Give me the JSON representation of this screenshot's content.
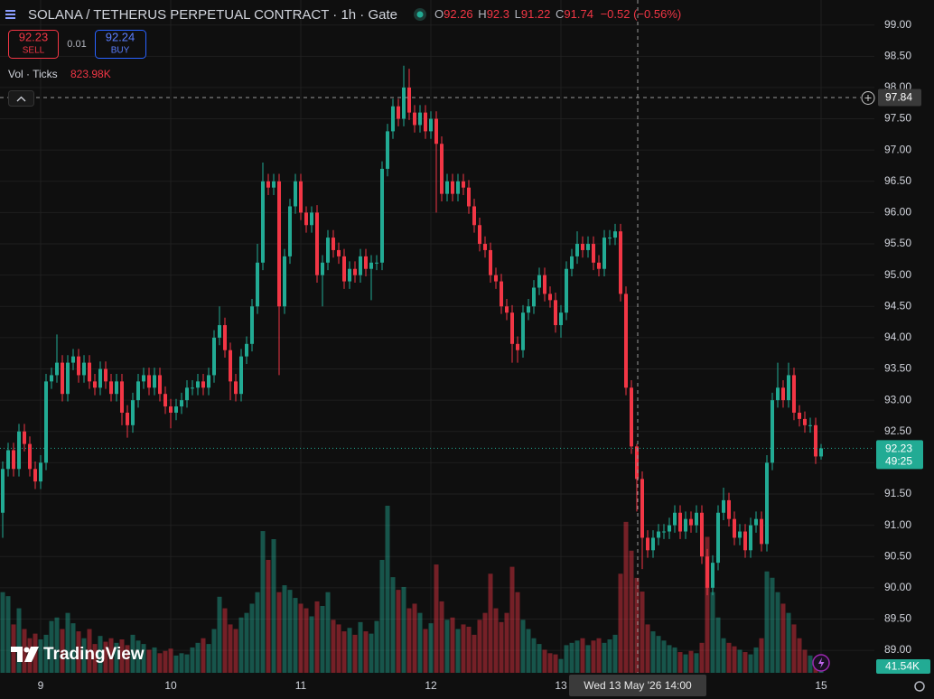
{
  "chart_data": {
    "type": "candlestick",
    "title": "SOLANA / TETHERUS PERPETUAL CONTRACT · 1h · Gate",
    "change": "−0.52 (−0.56%)",
    "up_color": "#22ab94",
    "down_color": "#f23645",
    "grid": true,
    "ylim": [
      88.64,
      99.4
    ],
    "yticks": [
      {
        "value": 89,
        "label": "89.00"
      },
      {
        "value": 89.5,
        "label": "89.50"
      },
      {
        "value": 90,
        "label": "90.00"
      },
      {
        "value": 90.5,
        "label": "90.50"
      },
      {
        "value": 91,
        "label": "91.00"
      },
      {
        "value": 91.5,
        "label": "91.50"
      },
      {
        "value": 92,
        "label": "92.00"
      },
      {
        "value": 92.5,
        "label": "92.50"
      },
      {
        "value": 93,
        "label": "93.00"
      },
      {
        "value": 93.5,
        "label": "93.50"
      },
      {
        "value": 94,
        "label": "94.00"
      },
      {
        "value": 94.5,
        "label": "94.50"
      },
      {
        "value": 95,
        "label": "95.00"
      },
      {
        "value": 95.5,
        "label": "95.50"
      },
      {
        "value": 96,
        "label": "96.00"
      },
      {
        "value": 96.5,
        "label": "96.50"
      },
      {
        "value": 97,
        "label": "97.00"
      },
      {
        "value": 97.5,
        "label": "97.50"
      },
      {
        "value": 98,
        "label": "98.00"
      },
      {
        "value": 98.5,
        "label": "98.50"
      },
      {
        "value": 99,
        "label": "99.00"
      }
    ],
    "categories": [
      null,
      null,
      null,
      null,
      null,
      null,
      null,
      "9",
      null,
      null,
      null,
      null,
      null,
      null,
      null,
      null,
      null,
      null,
      null,
      null,
      null,
      null,
      null,
      null,
      null,
      null,
      null,
      null,
      null,
      null,
      null,
      "10",
      null,
      null,
      null,
      null,
      null,
      null,
      null,
      null,
      null,
      null,
      null,
      null,
      null,
      null,
      null,
      null,
      null,
      null,
      null,
      null,
      null,
      null,
      null,
      "11",
      null,
      null,
      null,
      null,
      null,
      null,
      null,
      null,
      null,
      null,
      null,
      null,
      null,
      null,
      null,
      null,
      null,
      null,
      null,
      null,
      null,
      null,
      null,
      "12",
      null,
      null,
      null,
      null,
      null,
      null,
      null,
      null,
      null,
      null,
      null,
      null,
      null,
      null,
      null,
      null,
      null,
      null,
      null,
      null,
      null,
      null,
      null,
      "13",
      null,
      null,
      null,
      null,
      null,
      null,
      null,
      null,
      null,
      null,
      null,
      null,
      null,
      null,
      null,
      null,
      null,
      null,
      null,
      null,
      null,
      null,
      null,
      null,
      null,
      null,
      null,
      null,
      null,
      null,
      null,
      null,
      null,
      null,
      null,
      null,
      null,
      null,
      null,
      null,
      null,
      null,
      null,
      null,
      null,
      null,
      null,
      "15"
    ],
    "open": [
      91.2,
      91.9,
      92.2,
      91.9,
      92.5,
      92.3,
      91.9,
      91.7,
      92.0,
      93.3,
      93.4,
      93.6,
      93.1,
      93.6,
      93.7,
      93.4,
      93.6,
      93.3,
      93.2,
      93.5,
      93.3,
      93.1,
      93.3,
      92.8,
      92.6,
      93.0,
      93.3,
      93.4,
      93.2,
      93.4,
      93.1,
      92.9,
      92.8,
      92.9,
      93.0,
      93.2,
      93.2,
      93.3,
      93.2,
      93.4,
      94.0,
      94.2,
      93.8,
      93.3,
      93.1,
      93.7,
      93.9,
      94.5,
      95.2,
      96.5,
      96.4,
      96.5,
      94.5,
      95.3,
      96.1,
      96.5,
      96.0,
      95.8,
      96.0,
      95.0,
      95.2,
      95.6,
      95.4,
      95.3,
      94.9,
      95.1,
      95.0,
      95.3,
      95.1,
      95.2,
      95.2,
      96.7,
      97.3,
      97.7,
      97.5,
      98.0,
      97.6,
      97.4,
      97.6,
      97.3,
      97.5,
      97.1,
      96.3,
      96.5,
      96.3,
      96.5,
      96.4,
      96.1,
      95.8,
      95.5,
      95.4,
      95.0,
      94.9,
      94.5,
      94.4,
      93.9,
      93.8,
      94.4,
      94.5,
      94.8,
      95.0,
      94.7,
      94.6,
      94.2,
      94.4,
      95.1,
      95.3,
      95.5,
      95.4,
      95.5,
      95.2,
      95.1,
      95.6,
      95.6,
      95.7,
      94.7,
      93.2,
      92.26,
      91.74,
      90.8,
      90.6,
      90.8,
      90.9,
      90.9,
      91.0,
      91.2,
      90.9,
      91.1,
      91.0,
      91.2,
      90.5,
      90.0,
      90.4,
      91.2,
      91.4,
      91.1,
      90.8,
      90.9,
      90.6,
      91.0,
      91.1,
      90.7,
      92.0,
      93.0,
      93.2,
      93.0,
      93.4,
      92.8,
      92.7,
      92.6,
      92.6,
      92.1
    ],
    "high": [
      92.02,
      92.32,
      92.32,
      92.62,
      92.62,
      92.42,
      92.02,
      92.12,
      93.42,
      93.52,
      94.05,
      93.72,
      93.72,
      93.82,
      93.82,
      93.72,
      93.72,
      93.42,
      93.62,
      93.62,
      93.42,
      93.42,
      93.42,
      92.92,
      93.12,
      93.42,
      93.52,
      93.52,
      93.52,
      93.52,
      93.22,
      93.02,
      93.02,
      93.12,
      93.32,
      93.32,
      93.42,
      93.42,
      93.52,
      94.12,
      94.5,
      94.32,
      93.92,
      93.42,
      93.82,
      94.02,
      94.62,
      95.5,
      96.8,
      96.62,
      96.62,
      96.62,
      95.42,
      96.22,
      96.62,
      96.62,
      96.1,
      96.1,
      96.12,
      95.32,
      95.72,
      95.72,
      95.52,
      95.42,
      95.22,
      95.22,
      95.42,
      95.42,
      95.32,
      95.32,
      96.82,
      97.42,
      97.82,
      97.82,
      98.35,
      98.3,
      97.72,
      97.72,
      97.72,
      97.62,
      97.62,
      97.22,
      96.62,
      96.62,
      96.62,
      96.62,
      96.52,
      96.22,
      95.92,
      95.62,
      95.52,
      95.12,
      95.02,
      94.62,
      94.52,
      94.02,
      94.52,
      94.62,
      94.92,
      95.12,
      95.12,
      94.82,
      94.72,
      94.52,
      95.22,
      95.42,
      95.7,
      95.62,
      95.62,
      95.62,
      95.32,
      95.72,
      95.72,
      95.82,
      95.82,
      94.82,
      93.32,
      92.3,
      91.86,
      90.92,
      90.92,
      91.02,
      91.02,
      91.12,
      91.32,
      91.32,
      91.22,
      91.22,
      91.32,
      91.32,
      90.62,
      90.52,
      91.32,
      91.6,
      91.52,
      91.22,
      91.02,
      91.02,
      91.12,
      91.22,
      91.22,
      92.12,
      93.12,
      93.6,
      93.32,
      93.6,
      93.52,
      92.92,
      92.82,
      92.72,
      92.72,
      92.3
    ],
    "low": [
      90.8,
      91.78,
      91.78,
      91.78,
      92.18,
      91.78,
      91.58,
      91.58,
      91.88,
      93.18,
      93.28,
      92.98,
      92.98,
      93.48,
      93.28,
      93.28,
      93.18,
      93.08,
      93.08,
      93.18,
      92.98,
      92.98,
      92.6,
      92.4,
      92.48,
      92.88,
      93.18,
      93.08,
      93.08,
      92.98,
      92.78,
      92.55,
      92.68,
      92.78,
      92.88,
      93.08,
      93.08,
      93.08,
      93.08,
      93.28,
      93.88,
      93.68,
      93.0,
      92.98,
      92.98,
      93.58,
      93.78,
      94.38,
      95.08,
      96.28,
      96.28,
      93.4,
      94.38,
      95.18,
      95.98,
      95.88,
      95.68,
      95.68,
      94.88,
      94.5,
      95.08,
      95.28,
      95.18,
      94.78,
      94.78,
      94.88,
      94.88,
      94.98,
      94.6,
      95.08,
      95.08,
      96.58,
      97.18,
      97.38,
      97.38,
      97.48,
      97.28,
      97.28,
      97.18,
      97.18,
      96.0,
      96.18,
      96.18,
      96.18,
      96.18,
      96.28,
      95.98,
      95.68,
      95.38,
      95.28,
      94.88,
      94.78,
      94.38,
      94.28,
      93.6,
      93.6,
      93.68,
      94.28,
      94.38,
      94.68,
      94.58,
      94.48,
      94.08,
      94.0,
      94.28,
      94.98,
      95.18,
      95.28,
      95.28,
      95.08,
      94.98,
      94.98,
      95.48,
      95.48,
      94.58,
      93.08,
      92.14,
      91.22,
      90.3,
      90.48,
      90.48,
      90.68,
      90.78,
      90.78,
      90.88,
      90.78,
      90.78,
      90.88,
      90.88,
      90.38,
      89.88,
      89.88,
      90.28,
      91.08,
      90.98,
      90.68,
      90.68,
      90.48,
      90.48,
      90.88,
      90.58,
      90.58,
      91.88,
      92.88,
      92.88,
      92.88,
      92.68,
      92.58,
      92.48,
      92.48,
      91.98,
      92.05
    ],
    "close": [
      91.9,
      92.2,
      91.9,
      92.5,
      92.3,
      91.9,
      91.7,
      92.0,
      93.3,
      93.4,
      93.6,
      93.1,
      93.6,
      93.7,
      93.4,
      93.6,
      93.3,
      93.2,
      93.5,
      93.3,
      93.1,
      93.3,
      92.8,
      92.6,
      93.0,
      93.3,
      93.4,
      93.2,
      93.4,
      93.1,
      92.9,
      92.8,
      92.9,
      93.0,
      93.2,
      93.2,
      93.3,
      93.2,
      93.4,
      94.0,
      94.2,
      93.8,
      93.3,
      93.1,
      93.7,
      93.9,
      94.5,
      95.2,
      96.5,
      96.4,
      96.5,
      94.5,
      95.3,
      96.1,
      96.5,
      96.0,
      95.8,
      96.0,
      95.0,
      95.2,
      95.6,
      95.4,
      95.3,
      94.9,
      95.1,
      95.0,
      95.3,
      95.1,
      95.2,
      95.2,
      96.7,
      97.3,
      97.7,
      97.5,
      98.0,
      97.6,
      97.4,
      97.6,
      97.3,
      97.5,
      97.1,
      96.3,
      96.5,
      96.3,
      96.5,
      96.4,
      96.1,
      95.8,
      95.5,
      95.4,
      95.0,
      94.9,
      94.5,
      94.4,
      93.9,
      93.8,
      94.4,
      94.5,
      94.8,
      95.0,
      94.7,
      94.6,
      94.2,
      94.4,
      95.1,
      95.3,
      95.5,
      95.4,
      95.5,
      95.2,
      95.1,
      95.6,
      95.6,
      95.7,
      94.7,
      93.2,
      92.26,
      91.74,
      90.8,
      90.6,
      90.8,
      90.9,
      90.9,
      91.0,
      91.2,
      90.9,
      91.1,
      91.0,
      91.2,
      90.5,
      90.0,
      90.4,
      91.2,
      91.4,
      91.1,
      90.8,
      90.9,
      90.6,
      91.0,
      91.1,
      90.7,
      92.0,
      93.0,
      93.2,
      93.0,
      93.4,
      92.8,
      92.7,
      92.6,
      92.6,
      92.1,
      92.23
    ],
    "volume": [
      700,
      665,
      420,
      560,
      380,
      300,
      340,
      290,
      330,
      450,
      480,
      380,
      520,
      430,
      360,
      300,
      380,
      250,
      320,
      270,
      300,
      260,
      290,
      240,
      330,
      280,
      250,
      200,
      220,
      170,
      190,
      210,
      150,
      170,
      160,
      220,
      260,
      300,
      250,
      380,
      660,
      560,
      420,
      380,
      480,
      520,
      600,
      700,
      1230,
      980,
      1160,
      700,
      760,
      720,
      650,
      600,
      560,
      490,
      620,
      580,
      700,
      460,
      420,
      360,
      390,
      330,
      440,
      360,
      340,
      450,
      980,
      1450,
      830,
      720,
      745,
      560,
      600,
      520,
      380,
      430,
      940,
      620,
      460,
      480,
      380,
      420,
      400,
      330,
      460,
      520,
      860,
      560,
      440,
      520,
      920,
      700,
      460,
      380,
      300,
      250,
      200,
      170,
      160,
      120,
      240,
      260,
      280,
      300,
      240,
      280,
      300,
      260,
      290,
      330,
      860,
      1310,
      1060,
      823.98,
      705,
      420,
      360,
      320,
      280,
      240,
      220,
      180,
      160,
      190,
      170,
      260,
      1180,
      700,
      480,
      300,
      260,
      230,
      200,
      180,
      160,
      220,
      300,
      880,
      825,
      700,
      600,
      520,
      420,
      300,
      200,
      150,
      120,
      41.54
    ]
  },
  "ui": {
    "ohlc_labels": [
      "O",
      "H",
      "L",
      "C"
    ],
    "sell": {
      "price": 92.23,
      "label": "SELL"
    },
    "spread": 0.01,
    "buy": {
      "price": 92.24,
      "label": "BUY"
    },
    "volume_title": "Vol · Ticks",
    "volume_value": "823.98K",
    "crosshair": {
      "price": 97.84,
      "time_label": "Wed 13 May '26 14:00"
    },
    "countdown": "49:25",
    "last_volume": "41.54K",
    "brand": "TradingView"
  }
}
